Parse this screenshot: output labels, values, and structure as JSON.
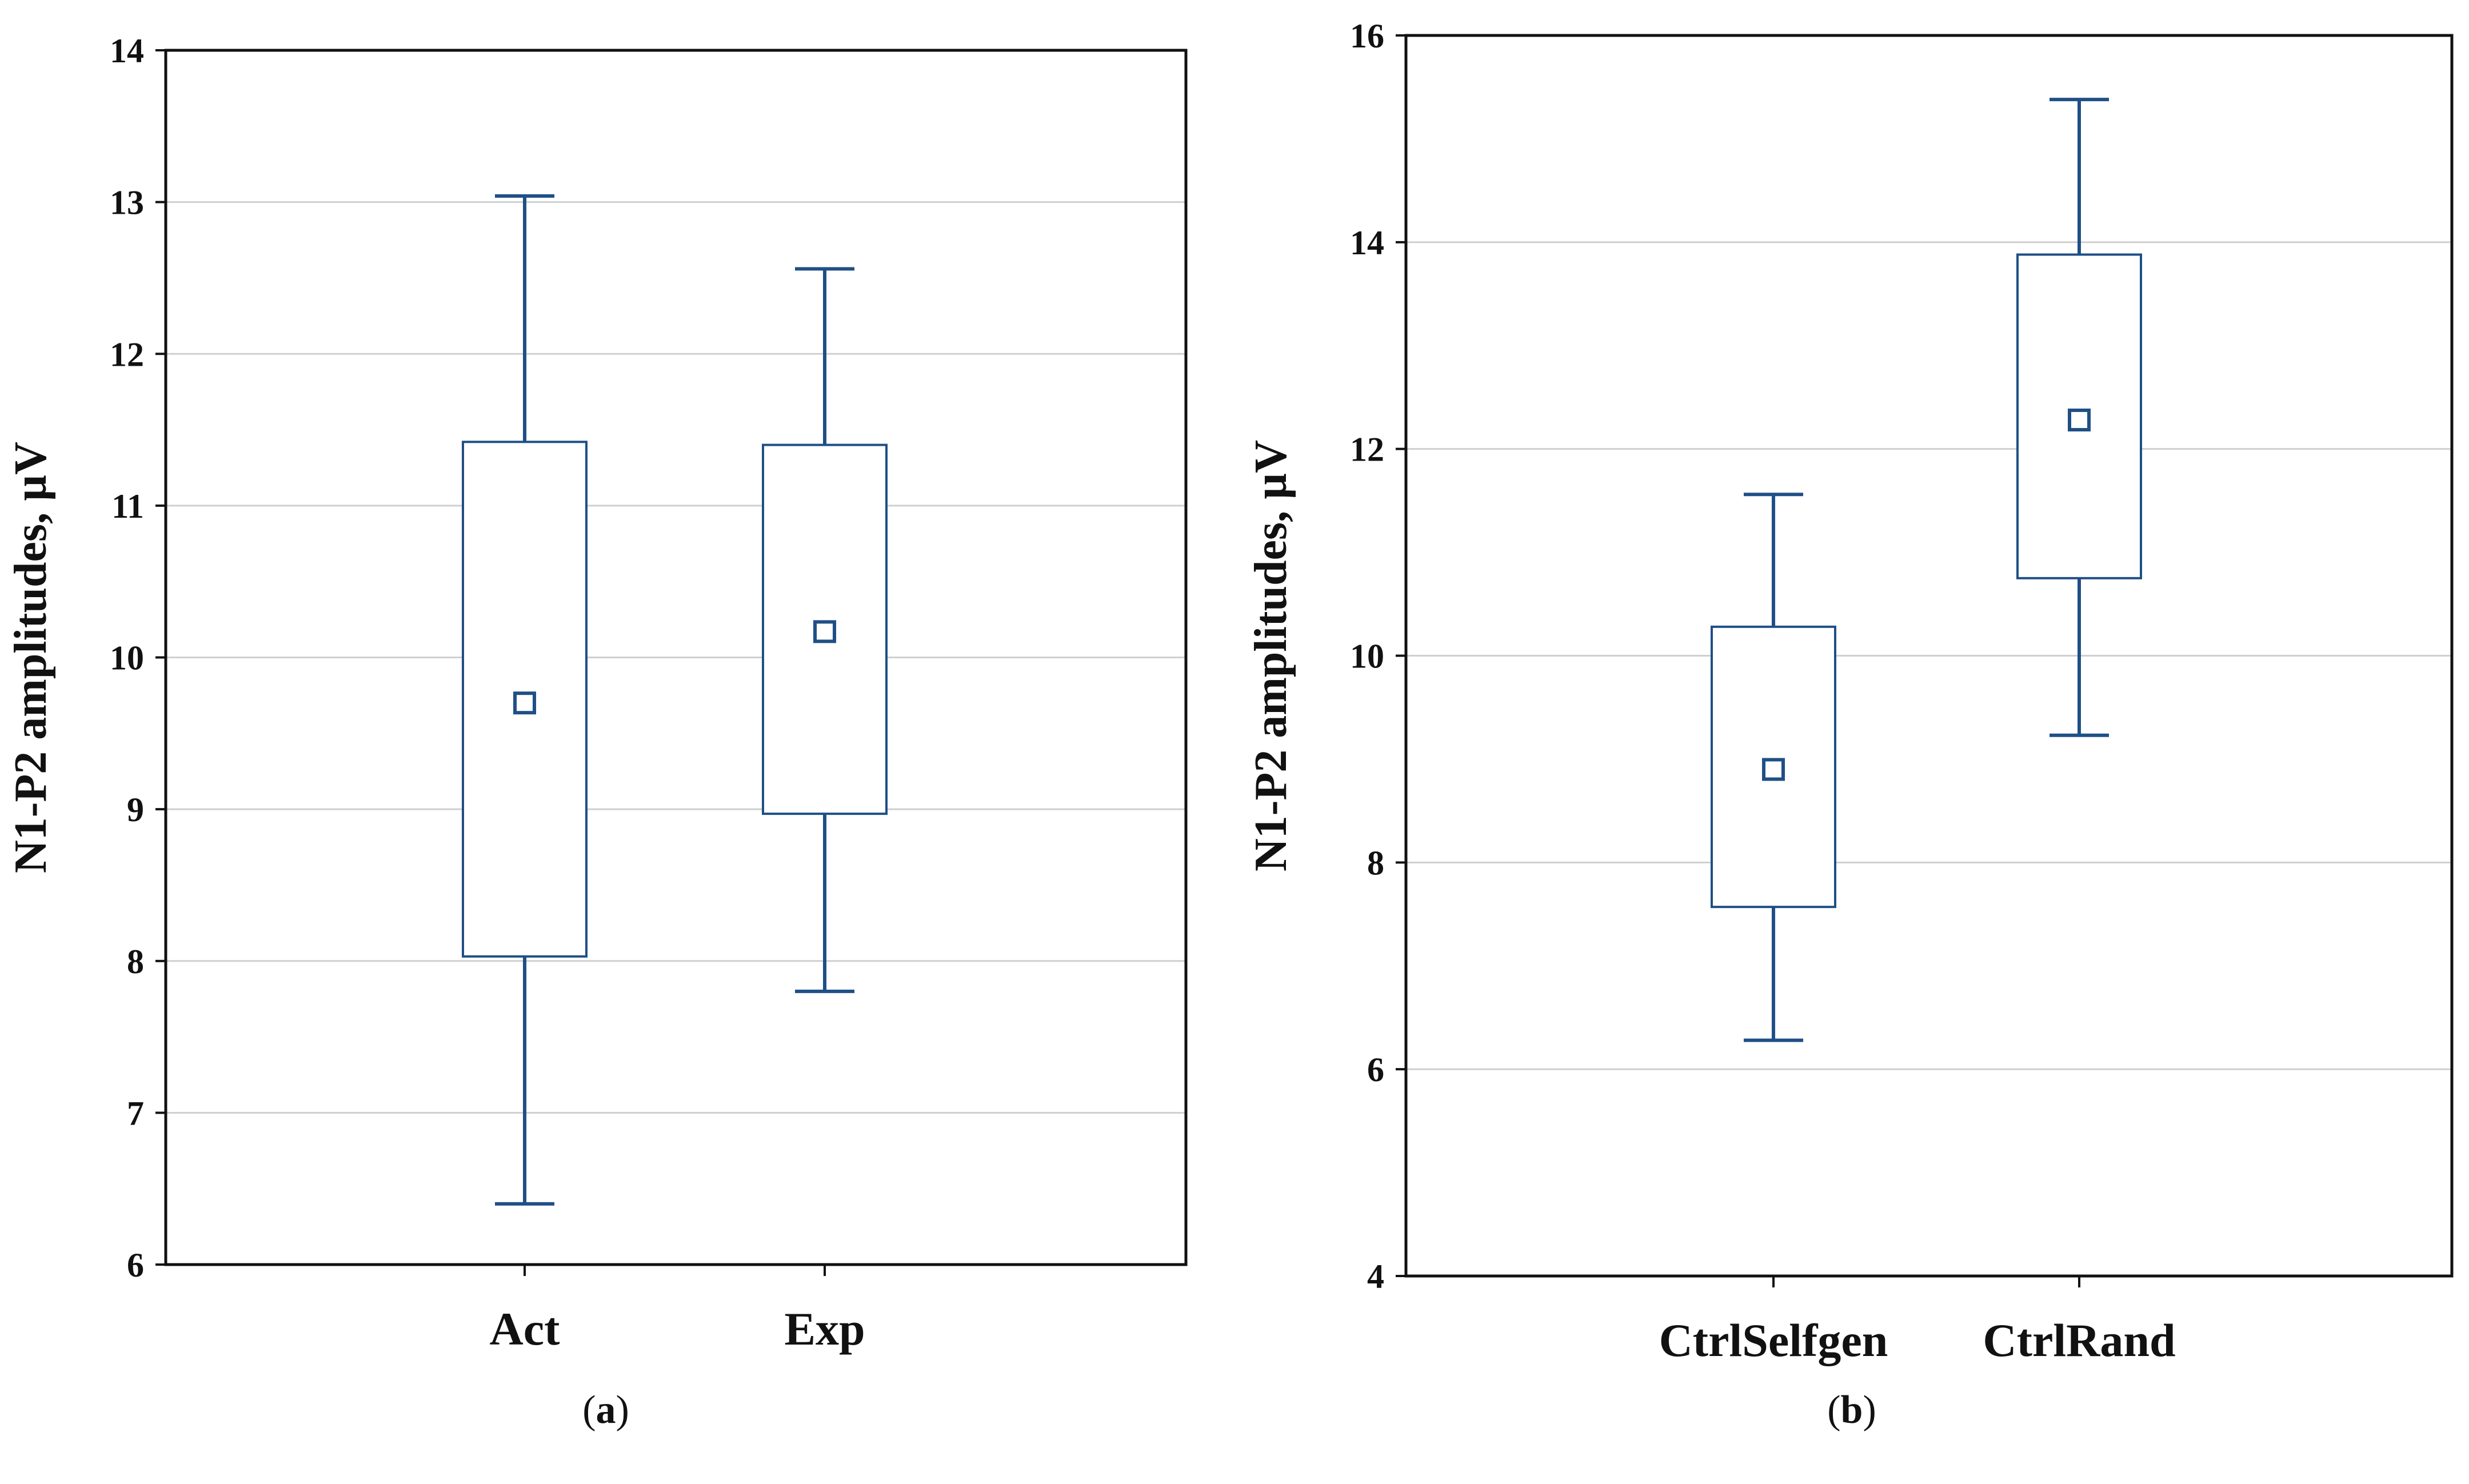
{
  "colors": {
    "box": "#1f4f86",
    "frame": "#111111",
    "grid": "#cfcfcf"
  },
  "chart_data": [
    {
      "type": "box",
      "panel_label_letter": "a",
      "ylabel": "N1-P2 amplitudes, µV",
      "xlabel": "",
      "ylim": [
        6,
        14
      ],
      "yticks": [
        6,
        7,
        8,
        9,
        10,
        11,
        12,
        13,
        14
      ],
      "grid": true,
      "categories": [
        "Act",
        "Exp"
      ],
      "series": [
        {
          "name": "Act",
          "whisker_low": 6.4,
          "box_low": 8.03,
          "center": 9.7,
          "box_high": 11.42,
          "whisker_high": 13.04
        },
        {
          "name": "Exp",
          "whisker_low": 7.8,
          "box_low": 8.97,
          "center": 10.17,
          "box_high": 11.4,
          "whisker_high": 12.56
        }
      ]
    },
    {
      "type": "box",
      "panel_label_letter": "b",
      "ylabel": "N1-P2 amplitudes, µV",
      "xlabel": "",
      "ylim": [
        4,
        16
      ],
      "yticks": [
        4,
        6,
        8,
        10,
        12,
        14,
        16
      ],
      "grid": true,
      "categories": [
        "CtrlSelfgen",
        "CtrlRand"
      ],
      "series": [
        {
          "name": "CtrlSelfgen",
          "whisker_low": 6.28,
          "box_low": 7.57,
          "center": 8.9,
          "box_high": 10.28,
          "whisker_high": 11.56
        },
        {
          "name": "CtrlRand",
          "whisker_low": 9.23,
          "box_low": 10.75,
          "center": 12.28,
          "box_high": 13.88,
          "whisker_high": 15.38
        }
      ]
    }
  ]
}
